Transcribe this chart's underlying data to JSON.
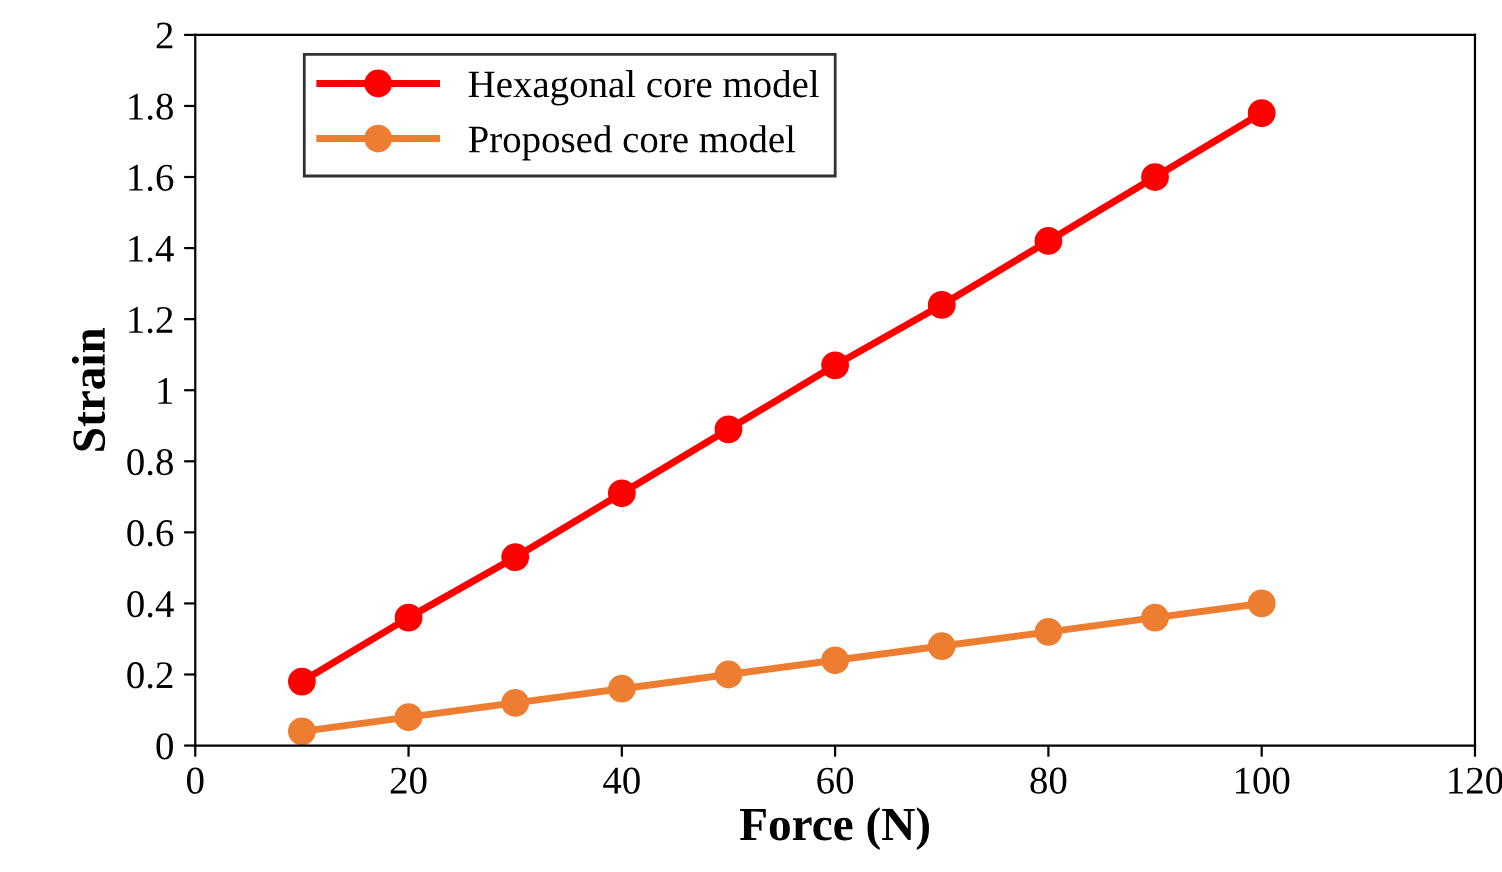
{
  "chart_data": {
    "type": "line",
    "xlabel": "Force (N)",
    "ylabel": "Strain",
    "x": [
      10,
      20,
      30,
      40,
      50,
      60,
      70,
      80,
      90,
      100
    ],
    "series": [
      {
        "name": "Hexagonal core model",
        "color": "#ff0000",
        "values": [
          0.18,
          0.36,
          0.53,
          0.71,
          0.89,
          1.07,
          1.24,
          1.42,
          1.6,
          1.78
        ]
      },
      {
        "name": "Proposed core model",
        "color": "#ed7d31",
        "values": [
          0.04,
          0.08,
          0.12,
          0.16,
          0.2,
          0.24,
          0.28,
          0.32,
          0.36,
          0.4
        ]
      }
    ],
    "xlim": [
      0,
      120
    ],
    "xticks": [
      0,
      20,
      40,
      60,
      80,
      100,
      120
    ],
    "ylim": [
      0,
      2
    ],
    "yticks": [
      0,
      0.2,
      0.4,
      0.6,
      0.8,
      1,
      1.2,
      1.4,
      1.6,
      1.8,
      2
    ],
    "grid": false,
    "legend": "top left",
    "marker": "circle",
    "line_style": "solid"
  }
}
